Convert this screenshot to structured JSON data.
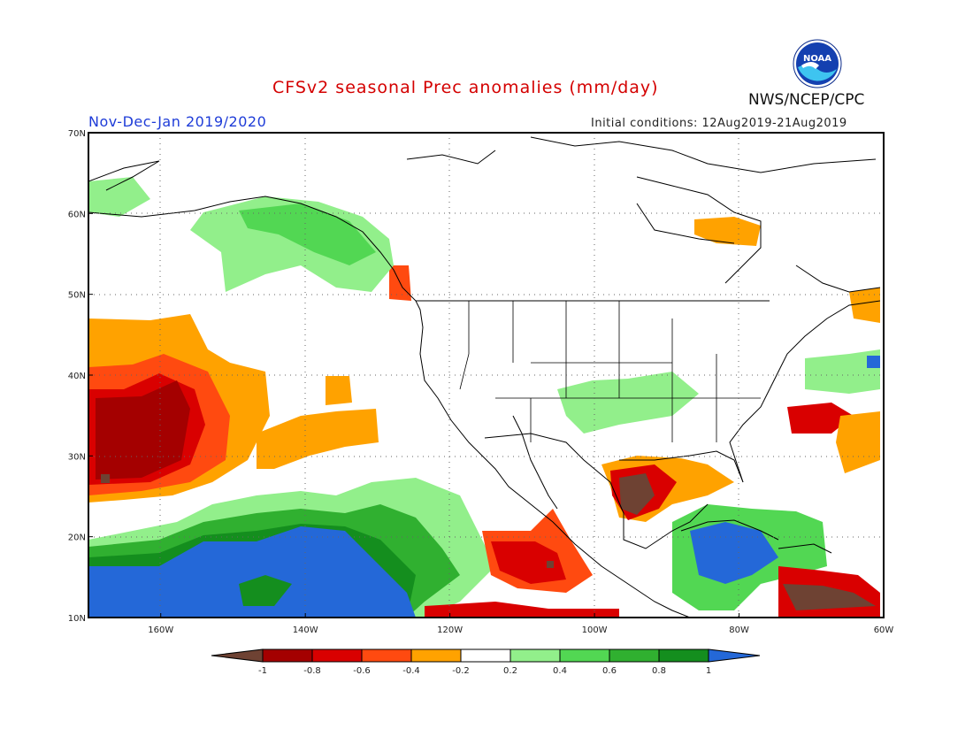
{
  "header": {
    "title": "CFSv2 seasonal Prec anomalies (mm/day)",
    "season": "Nov-Dec-Jan 2019/2020",
    "init_conditions": "Initial conditions: 12Aug2019-21Aug2019",
    "agency": "NWS/NCEP/CPC",
    "logo_text": "NOAA"
  },
  "map": {
    "lon_range": [
      -170,
      -60
    ],
    "lat_range": [
      10,
      70
    ],
    "lat_labels": [
      "70N",
      "60N",
      "50N",
      "40N",
      "30N",
      "20N",
      "10N"
    ],
    "lon_labels": [
      "160W",
      "140W",
      "120W",
      "100W",
      "80W",
      "60W"
    ],
    "gridlines": "dotted"
  },
  "legend": {
    "labels": [
      "-1",
      "-0.8",
      "-0.6",
      "-0.4",
      "-0.2",
      "0.2",
      "0.4",
      "0.6",
      "0.8",
      "1"
    ],
    "colors": [
      "#6e4233",
      "#a40000",
      "#d90000",
      "#ff4a10",
      "#ffa200",
      "#ffffff",
      "#92ef8b",
      "#52d753",
      "#30b030",
      "#148e1e",
      "#2468d8"
    ]
  }
}
